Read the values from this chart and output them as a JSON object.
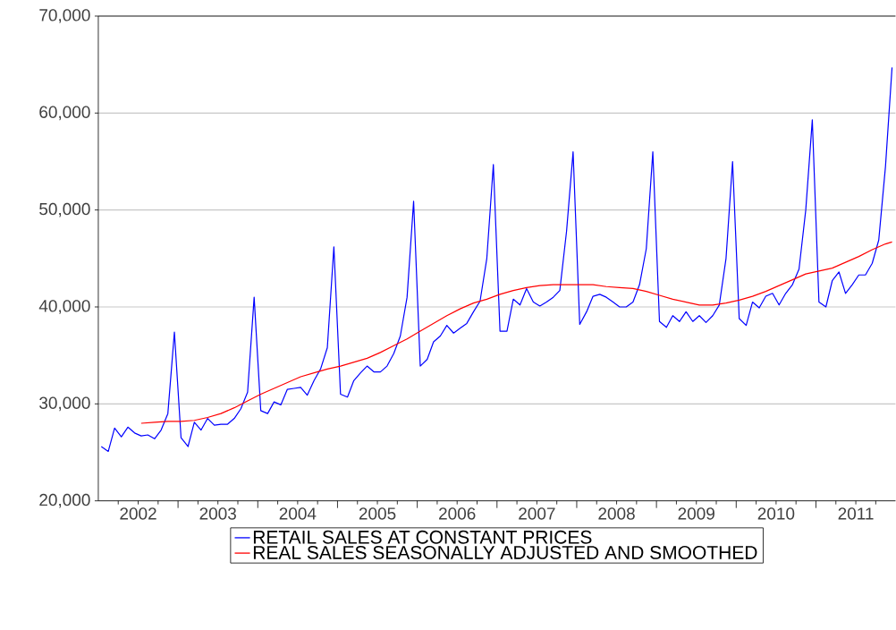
{
  "chart_data": {
    "type": "line",
    "x": [
      "2002-01-15",
      "2002-02-15",
      "2002-03-15",
      "2002-04-15",
      "2002-05-15",
      "2002-06-15",
      "2002-07-15",
      "2002-08-15",
      "2002-09-15",
      "2002-10-15",
      "2002-11-15",
      "2002-12-15",
      "2003-01-15",
      "2003-02-15",
      "2003-03-15",
      "2003-04-15",
      "2003-05-15",
      "2003-06-15",
      "2003-07-15",
      "2003-08-15",
      "2003-09-15",
      "2003-10-15",
      "2003-11-15",
      "2003-12-15",
      "2004-01-15",
      "2004-02-15",
      "2004-03-15",
      "2004-04-15",
      "2004-05-15",
      "2004-06-15",
      "2004-07-15",
      "2004-08-15",
      "2004-09-15",
      "2004-10-15",
      "2004-11-15",
      "2004-12-15",
      "2005-01-15",
      "2005-02-15",
      "2005-03-15",
      "2005-04-15",
      "2005-05-15",
      "2005-06-15",
      "2005-07-15",
      "2005-08-15",
      "2005-09-15",
      "2005-10-15",
      "2005-11-15",
      "2005-12-15",
      "2006-01-15",
      "2006-02-15",
      "2006-03-15",
      "2006-04-15",
      "2006-05-15",
      "2006-06-15",
      "2006-07-15",
      "2006-08-15",
      "2006-09-15",
      "2006-10-15",
      "2006-11-15",
      "2006-12-15",
      "2007-01-15",
      "2007-02-15",
      "2007-03-15",
      "2007-04-15",
      "2007-05-15",
      "2007-06-15",
      "2007-07-15",
      "2007-08-15",
      "2007-09-15",
      "2007-10-15",
      "2007-11-15",
      "2007-12-15",
      "2008-01-15",
      "2008-02-15",
      "2008-03-15",
      "2008-04-15",
      "2008-05-15",
      "2008-06-15",
      "2008-07-15",
      "2008-08-15",
      "2008-09-15",
      "2008-10-15",
      "2008-11-15",
      "2008-12-15",
      "2009-01-15",
      "2009-02-15",
      "2009-03-15",
      "2009-04-15",
      "2009-05-15",
      "2009-06-15",
      "2009-07-15",
      "2009-08-15",
      "2009-09-15",
      "2009-10-15",
      "2009-11-15",
      "2009-12-15",
      "2010-01-15",
      "2010-02-15",
      "2010-03-15",
      "2010-04-15",
      "2010-05-15",
      "2010-06-15",
      "2010-07-15",
      "2010-08-15",
      "2010-09-15",
      "2010-10-15",
      "2010-11-15",
      "2010-12-15",
      "2011-01-15",
      "2011-02-15",
      "2011-03-15",
      "2011-04-15",
      "2011-05-15",
      "2011-06-15",
      "2011-07-15",
      "2011-08-15",
      "2011-09-15",
      "2011-10-15",
      "2011-11-15",
      "2011-12-15"
    ],
    "series": [
      {
        "name": "RETAIL SALES AT CONSTANT PRICES",
        "color": "#0000ff",
        "values": [
          25600,
          25100,
          27500,
          26600,
          27600,
          27000,
          26700,
          26800,
          26400,
          27300,
          29000,
          37400,
          26500,
          25600,
          28100,
          27300,
          28500,
          27800,
          27900,
          27900,
          28500,
          29500,
          31200,
          41000,
          29300,
          29000,
          30200,
          29900,
          31500,
          31600,
          31700,
          30900,
          32400,
          33600,
          35800,
          46200,
          31000,
          30700,
          32400,
          33200,
          33900,
          33300,
          33300,
          33900,
          35200,
          37000,
          41000,
          50900,
          33900,
          34600,
          36400,
          37000,
          38100,
          37300,
          37800,
          38300,
          39500,
          40600,
          45000,
          54700,
          37500,
          37500,
          40800,
          40200,
          41900,
          40500,
          40100,
          40500,
          41000,
          41700,
          47800,
          56000,
          38200,
          39500,
          41100,
          41300,
          41000,
          40500,
          40000,
          40000,
          40500,
          42300,
          46000,
          56000,
          38500,
          37900,
          39100,
          38500,
          39500,
          38500,
          39100,
          38400,
          39100,
          40200,
          45000,
          55000,
          38800,
          38100,
          40500,
          39900,
          41100,
          41400,
          40200,
          41400,
          42300,
          43900,
          50000,
          59300,
          40500,
          40000,
          42700,
          43600,
          41400,
          42300,
          43300,
          43300,
          44500,
          46900,
          54500,
          64700
        ]
      },
      {
        "name": "REAL SALES SEASONALLY ADJUSTED AND SMOOTHED",
        "color": "#ff0000",
        "x": [
          "2002-07-15",
          "2002-09-15",
          "2002-11-15",
          "2003-01-15",
          "2003-03-15",
          "2003-05-15",
          "2003-07-15",
          "2003-09-15",
          "2003-11-15",
          "2004-01-15",
          "2004-03-15",
          "2004-05-15",
          "2004-07-15",
          "2004-09-15",
          "2004-11-15",
          "2005-01-15",
          "2005-03-15",
          "2005-05-15",
          "2005-07-15",
          "2005-09-15",
          "2005-11-15",
          "2006-01-15",
          "2006-03-15",
          "2006-05-15",
          "2006-07-15",
          "2006-09-15",
          "2006-11-15",
          "2007-01-15",
          "2007-03-15",
          "2007-05-15",
          "2007-07-15",
          "2007-09-15",
          "2007-11-15",
          "2008-01-15",
          "2008-03-15",
          "2008-05-15",
          "2008-07-15",
          "2008-09-15",
          "2008-11-15",
          "2009-01-15",
          "2009-03-15",
          "2009-05-15",
          "2009-07-15",
          "2009-09-15",
          "2009-11-15",
          "2010-01-15",
          "2010-03-15",
          "2010-05-15",
          "2010-07-15",
          "2010-09-15",
          "2010-11-15",
          "2011-01-15",
          "2011-03-15",
          "2011-05-15",
          "2011-07-15",
          "2011-09-15",
          "2011-11-15",
          "2011-12-15"
        ],
        "values": [
          28000,
          28100,
          28200,
          28200,
          28300,
          28600,
          29000,
          29600,
          30300,
          31000,
          31600,
          32200,
          32800,
          33200,
          33600,
          33900,
          34300,
          34700,
          35300,
          36000,
          36700,
          37500,
          38300,
          39100,
          39800,
          40400,
          40800,
          41300,
          41700,
          42000,
          42200,
          42300,
          42300,
          42300,
          42300,
          42100,
          42000,
          41900,
          41600,
          41200,
          40800,
          40500,
          40200,
          40200,
          40400,
          40700,
          41100,
          41600,
          42200,
          42800,
          43400,
          43700,
          44000,
          44600,
          45200,
          45900,
          46500,
          46700
        ]
      }
    ],
    "xlim": [
      "2002-01-01",
      "2011-12-31"
    ],
    "xticks": [
      {
        "value": "2002-04-01",
        "label": null
      },
      {
        "value": "2002-07-01",
        "label": "2002"
      },
      {
        "value": "2002-10-01",
        "label": null
      },
      {
        "value": "2003-01-01",
        "label": null
      },
      {
        "value": "2003-04-01",
        "label": null
      },
      {
        "value": "2003-07-01",
        "label": "2003"
      },
      {
        "value": "2003-10-01",
        "label": null
      },
      {
        "value": "2004-01-01",
        "label": null
      },
      {
        "value": "2004-04-01",
        "label": null
      },
      {
        "value": "2004-07-01",
        "label": "2004"
      },
      {
        "value": "2004-10-01",
        "label": null
      },
      {
        "value": "2005-01-01",
        "label": null
      },
      {
        "value": "2005-04-01",
        "label": null
      },
      {
        "value": "2005-07-01",
        "label": "2005"
      },
      {
        "value": "2005-10-01",
        "label": null
      },
      {
        "value": "2006-01-01",
        "label": null
      },
      {
        "value": "2006-04-01",
        "label": null
      },
      {
        "value": "2006-07-01",
        "label": "2006"
      },
      {
        "value": "2006-10-01",
        "label": null
      },
      {
        "value": "2007-01-01",
        "label": null
      },
      {
        "value": "2007-04-01",
        "label": null
      },
      {
        "value": "2007-07-01",
        "label": "2007"
      },
      {
        "value": "2007-10-01",
        "label": null
      },
      {
        "value": "2008-01-01",
        "label": null
      },
      {
        "value": "2008-04-01",
        "label": null
      },
      {
        "value": "2008-07-01",
        "label": "2008"
      },
      {
        "value": "2008-10-01",
        "label": null
      },
      {
        "value": "2009-01-01",
        "label": null
      },
      {
        "value": "2009-04-01",
        "label": null
      },
      {
        "value": "2009-07-01",
        "label": "2009"
      },
      {
        "value": "2009-10-01",
        "label": null
      },
      {
        "value": "2010-01-01",
        "label": null
      },
      {
        "value": "2010-04-01",
        "label": null
      },
      {
        "value": "2010-07-01",
        "label": "2010"
      },
      {
        "value": "2010-10-01",
        "label": null
      },
      {
        "value": "2011-01-01",
        "label": null
      },
      {
        "value": "2011-04-01",
        "label": null
      },
      {
        "value": "2011-07-01",
        "label": "2011"
      },
      {
        "value": "2011-10-01",
        "label": null
      }
    ],
    "ylim": [
      20000,
      70000
    ],
    "yticks": [
      {
        "value": 20000,
        "label": "20,000"
      },
      {
        "value": 30000,
        "label": "30,000"
      },
      {
        "value": 40000,
        "label": "40,000"
      },
      {
        "value": 50000,
        "label": "50,000"
      },
      {
        "value": 60000,
        "label": "60,000"
      },
      {
        "value": 70000,
        "label": "70,000"
      }
    ],
    "grid": "y",
    "legend": "bottom",
    "marker": "none",
    "line_style": "solid"
  }
}
